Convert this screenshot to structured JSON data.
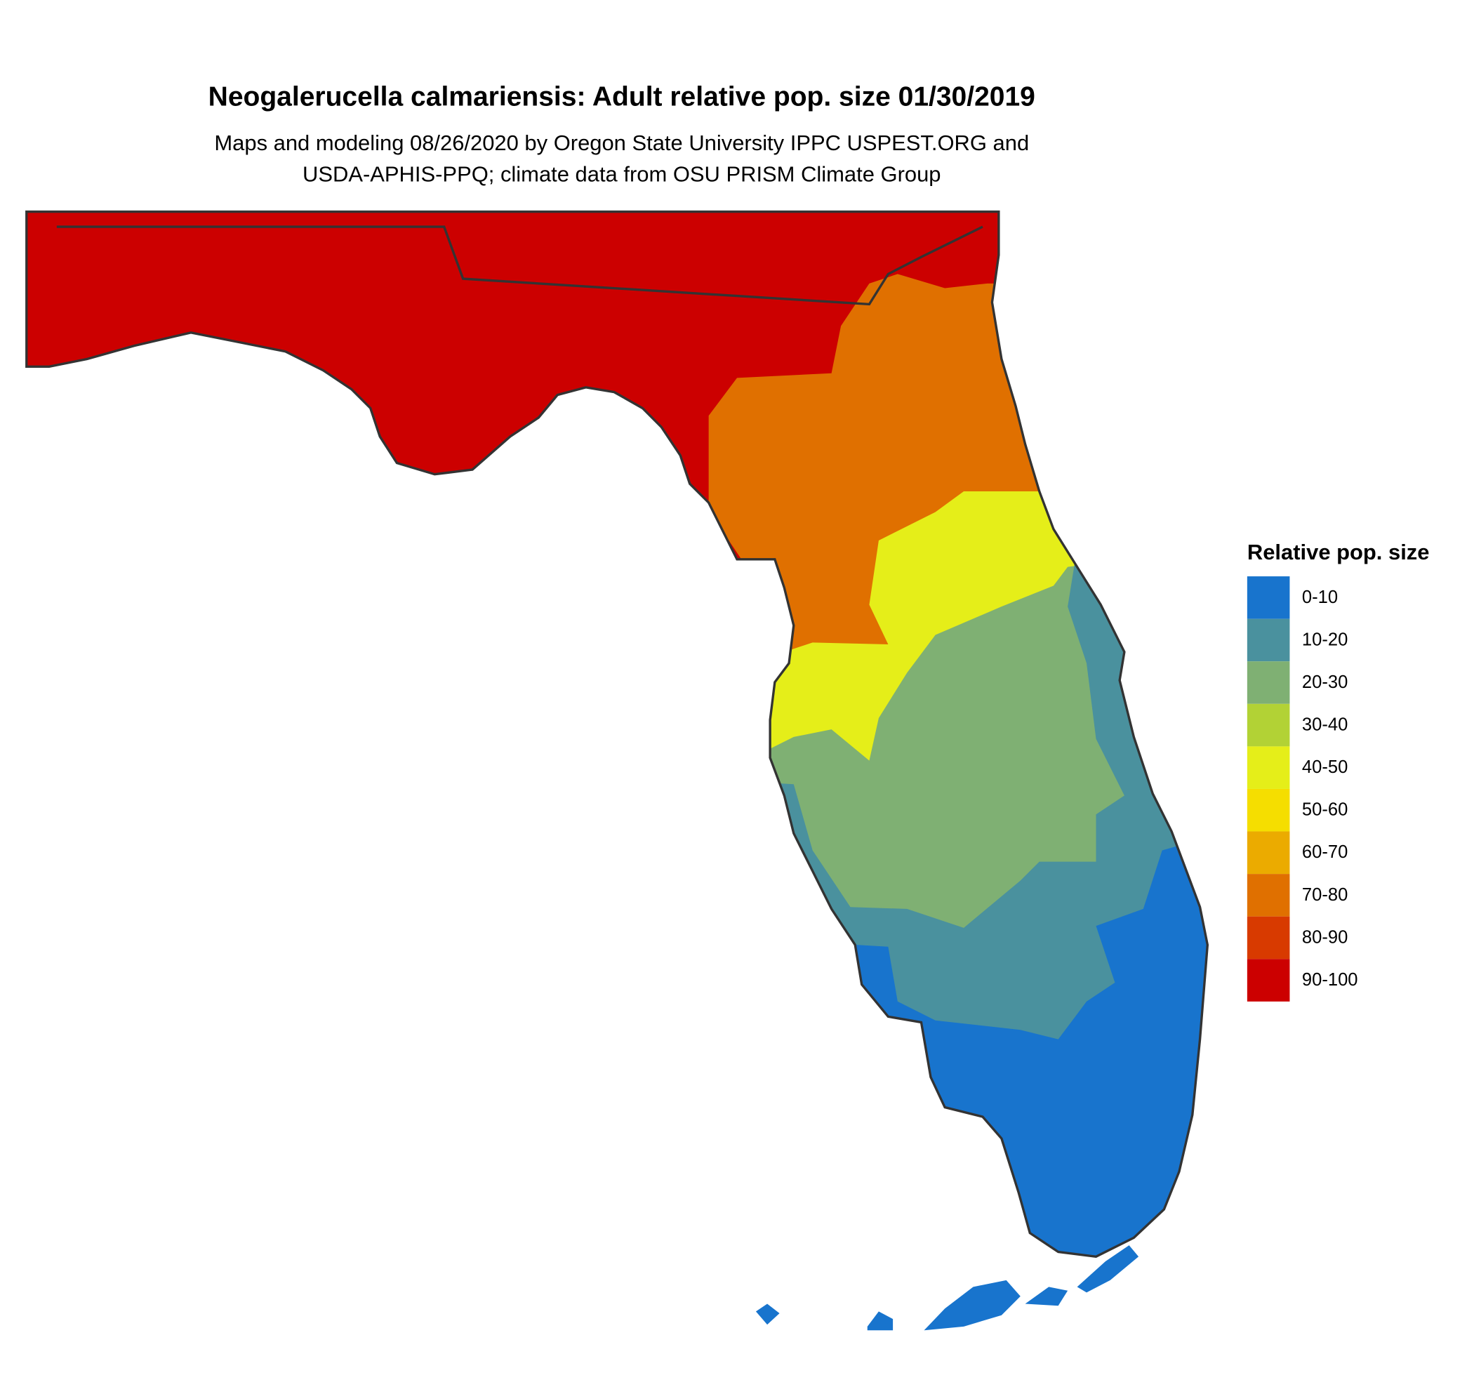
{
  "title": "Neogalerucella calmariensis: Adult relative pop. size 01/30/2019",
  "subtitle": [
    "Maps and modeling 08/26/2020 by Oregon State University IPPC USPEST.ORG and",
    "USDA-APHIS-PPQ; climate data from OSU PRISM Climate Group"
  ],
  "legend": {
    "title": "Relative pop. size",
    "items": [
      {
        "label": "0-10",
        "color": "#1874CD"
      },
      {
        "label": "10-20",
        "color": "#4A919E"
      },
      {
        "label": "20-30",
        "color": "#7FB073"
      },
      {
        "label": "30-40",
        "color": "#B2D235"
      },
      {
        "label": "40-50",
        "color": "#E5EE19"
      },
      {
        "label": "50-60",
        "color": "#F5DE00"
      },
      {
        "label": "60-70",
        "color": "#EBAB00"
      },
      {
        "label": "70-80",
        "color": "#E07000"
      },
      {
        "label": "80-90",
        "color": "#D83A00"
      },
      {
        "label": "90-100",
        "color": "#CC0000"
      }
    ]
  }
}
